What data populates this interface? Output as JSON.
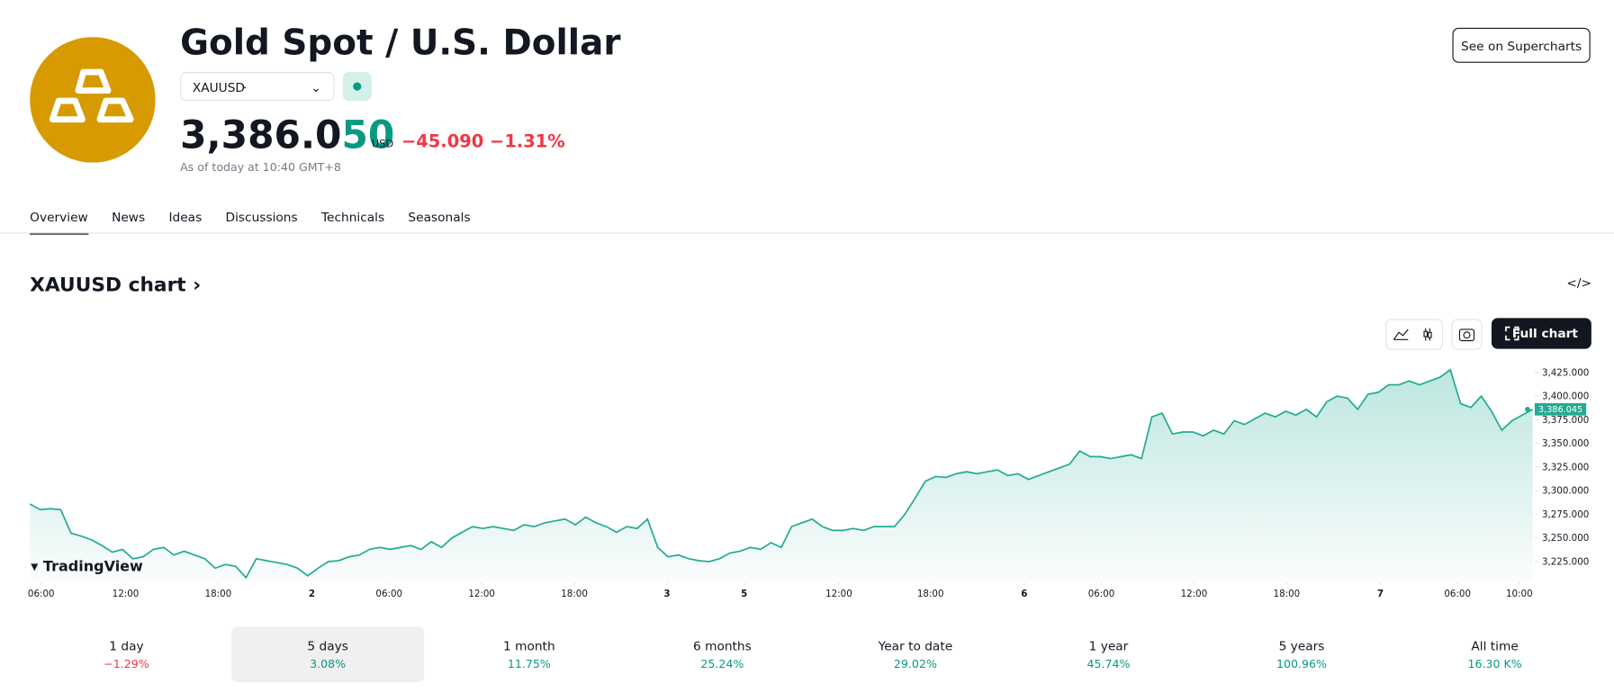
{
  "header": {
    "title": "Gold Spot / U.S. Dollar",
    "symbol": "XAUUSD",
    "price_main": "3,386.0",
    "price_tail": "50",
    "currency": "USD",
    "change": "−45.090",
    "change_percent": "−1.31%",
    "as_of": "As of today at 10:40 GMT+8",
    "button": "See on Supercharts"
  },
  "tabs": [
    "Overview",
    "News",
    "Ideas",
    "Discussions",
    "Technicals",
    "Seasonals"
  ],
  "chart_section": {
    "title": "XAUUSD chart",
    "full_chart": "Full chart",
    "brand": "TradingView",
    "price_tag": "3,386.045"
  },
  "periods": [
    {
      "label": "1 day",
      "change": "−1.29%"
    },
    {
      "label": "5 days",
      "change": "3.08%"
    },
    {
      "label": "1 month",
      "change": "11.75%"
    },
    {
      "label": "6 months",
      "change": "25.24%"
    },
    {
      "label": "Year to date",
      "change": "29.02%"
    },
    {
      "label": "1 year",
      "change": "45.74%"
    },
    {
      "label": "5 years",
      "change": "100.96%"
    },
    {
      "label": "All time",
      "change": "16.30 K%"
    }
  ],
  "chart_data": {
    "type": "line",
    "color": "#22ab94",
    "x": [
      0,
      1,
      2,
      3,
      4,
      5,
      6,
      7,
      8,
      9,
      10,
      11,
      12,
      13,
      14,
      15,
      16,
      17,
      18,
      19,
      20,
      21,
      22,
      23,
      24,
      25,
      26,
      27,
      28,
      29,
      30,
      31,
      32,
      33,
      34,
      35,
      36,
      37,
      38,
      39,
      40,
      41,
      42,
      43,
      44,
      45,
      46,
      47,
      48,
      49,
      50,
      51,
      52,
      53,
      54,
      55,
      56,
      57,
      58,
      59,
      60,
      61,
      62,
      63,
      64,
      65,
      66,
      67,
      68,
      69,
      70,
      71,
      72,
      73,
      74,
      75,
      76,
      77,
      78,
      79,
      80,
      81,
      82,
      83,
      84,
      85,
      86,
      87,
      88,
      89,
      90,
      91,
      92,
      93,
      94,
      95,
      96,
      97,
      98,
      99,
      100,
      101,
      102,
      103,
      104,
      105,
      106,
      107,
      108,
      109,
      110,
      111,
      112,
      113,
      114,
      115,
      116,
      117,
      118,
      119,
      120,
      121,
      122,
      123,
      124,
      125,
      126,
      127,
      128,
      129,
      130,
      131,
      132,
      133,
      134,
      135,
      136,
      137,
      138,
      139,
      140,
      141,
      142,
      143,
      144,
      145,
      146
    ],
    "values": [
      3286,
      3280,
      3281,
      3280,
      3255,
      3252,
      3248,
      3242,
      3235,
      3238,
      3228,
      3230,
      3238,
      3240,
      3232,
      3236,
      3232,
      3228,
      3218,
      3222,
      3220,
      3208,
      3228,
      3226,
      3224,
      3222,
      3218,
      3210,
      3218,
      3225,
      3226,
      3230,
      3232,
      3238,
      3240,
      3238,
      3240,
      3242,
      3238,
      3246,
      3240,
      3250,
      3256,
      3262,
      3260,
      3262,
      3260,
      3258,
      3264,
      3262,
      3266,
      3268,
      3270,
      3264,
      3272,
      3266,
      3262,
      3256,
      3262,
      3260,
      3270,
      3240,
      3230,
      3232,
      3228,
      3226,
      3225,
      3228,
      3234,
      3236,
      3240,
      3238,
      3245,
      3240,
      3262,
      3266,
      3270,
      3262,
      3258,
      3258,
      3260,
      3258,
      3262,
      3262,
      3262,
      3275,
      3292,
      3310,
      3315,
      3314,
      3318,
      3320,
      3318,
      3320,
      3322,
      3316,
      3318,
      3312,
      3316,
      3320,
      3324,
      3328,
      3342,
      3336,
      3336,
      3334,
      3336,
      3338,
      3334,
      3378,
      3382,
      3360,
      3362,
      3362,
      3358,
      3364,
      3360,
      3374,
      3370,
      3376,
      3382,
      3378,
      3384,
      3380,
      3386,
      3378,
      3394,
      3400,
      3398,
      3386,
      3402,
      3404,
      3412,
      3412,
      3416,
      3412,
      3416,
      3420,
      3428,
      3392,
      3388,
      3400,
      3384,
      3364,
      3374,
      3380,
      3386.045
    ],
    "xlim": [
      0,
      146
    ],
    "xticks": [
      {
        "value": 1.1,
        "label": "06:00"
      },
      {
        "value": 9.3,
        "label": "12:00"
      },
      {
        "value": 18.3,
        "label": "18:00"
      },
      {
        "value": 27.4,
        "label": "2"
      },
      {
        "value": 34.9,
        "label": "06:00"
      },
      {
        "value": 43.9,
        "label": "12:00"
      },
      {
        "value": 52.9,
        "label": "18:00"
      },
      {
        "value": 61.9,
        "label": "3"
      },
      {
        "value": 69.4,
        "label": "5"
      },
      {
        "value": 78.6,
        "label": "12:00"
      },
      {
        "value": 87.5,
        "label": "18:00"
      },
      {
        "value": 96.6,
        "label": "6"
      },
      {
        "value": 104.1,
        "label": "06:00"
      },
      {
        "value": 113.1,
        "label": "12:00"
      },
      {
        "value": 122.1,
        "label": "18:00"
      },
      {
        "value": 131.2,
        "label": "7"
      },
      {
        "value": 138.7,
        "label": "06:00"
      },
      {
        "value": 144.7,
        "label": "10:00"
      }
    ],
    "ylim": [
      3204,
      3438
    ],
    "yticks": [
      {
        "value": 3225,
        "label": "3,225.000"
      },
      {
        "value": 3250,
        "label": "3,250.000"
      },
      {
        "value": 3275,
        "label": "3,275.000"
      },
      {
        "value": 3300,
        "label": "3,300.000"
      },
      {
        "value": 3325,
        "label": "3,325.000"
      },
      {
        "value": 3350,
        "label": "3,350.000"
      },
      {
        "value": 3375,
        "label": "3,375.000"
      },
      {
        "value": 3400,
        "label": "3,400.000"
      },
      {
        "value": 3425,
        "label": "3,425.000"
      }
    ]
  }
}
